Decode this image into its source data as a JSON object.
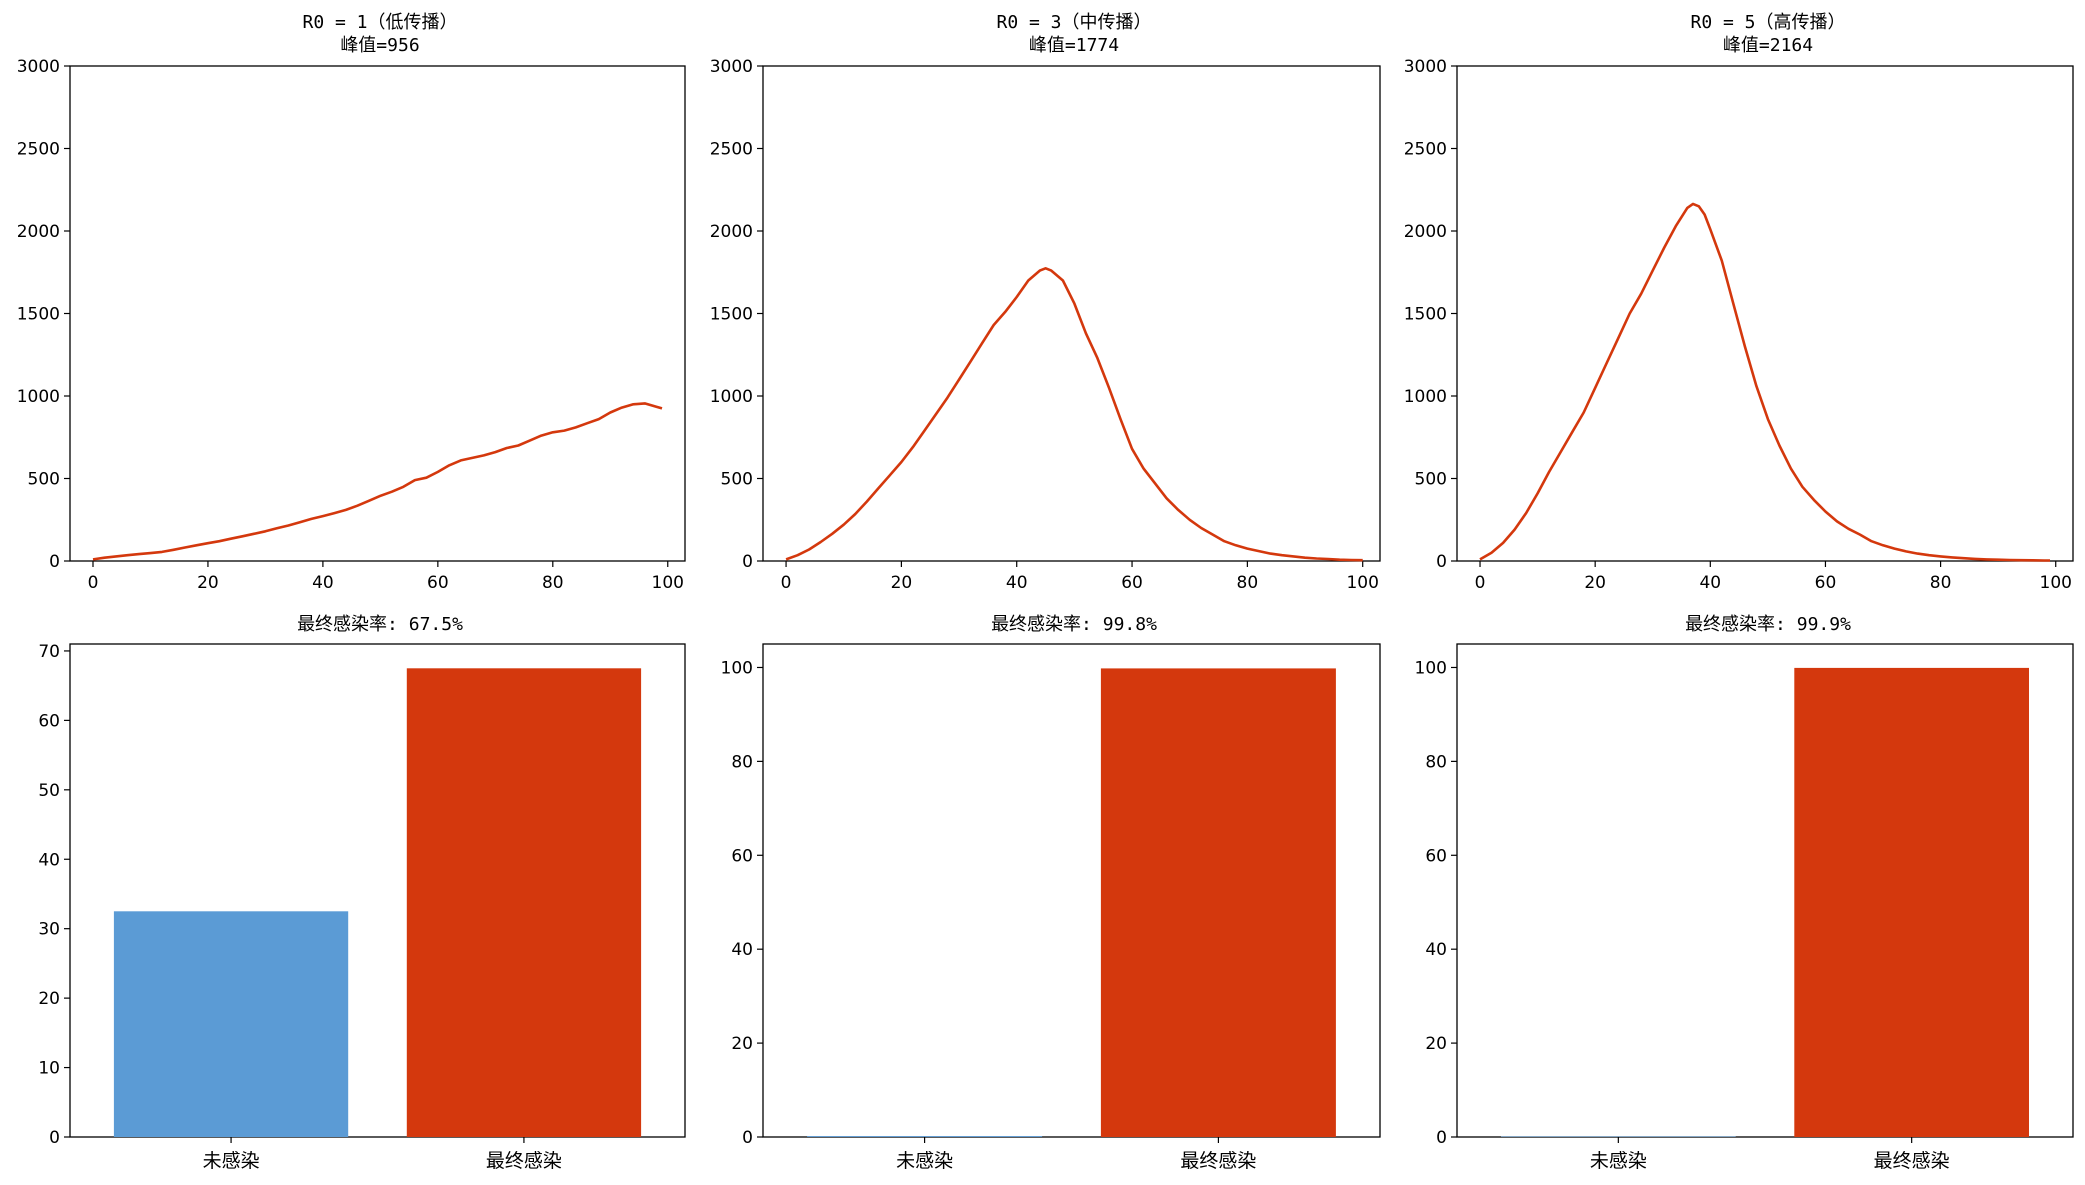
{
  "chart_data": [
    {
      "type": "line",
      "title": "R0 = 1（低传播）",
      "subtitle": "峰值=956",
      "xlim": [
        -4,
        103
      ],
      "ylim": [
        0,
        3000
      ],
      "xticks": [
        0,
        20,
        40,
        60,
        80,
        100
      ],
      "yticks": [
        0,
        500,
        1000,
        1500,
        2000,
        2500,
        3000
      ],
      "color": "#d4380d",
      "series": [
        {
          "x": [
            0,
            2,
            4,
            6,
            8,
            10,
            12,
            14,
            16,
            18,
            20,
            22,
            24,
            26,
            28,
            30,
            32,
            34,
            36,
            38,
            40,
            42,
            44,
            46,
            48,
            50,
            52,
            54,
            56,
            58,
            60,
            62,
            64,
            66,
            68,
            70,
            72,
            74,
            76,
            78,
            80,
            82,
            84,
            86,
            88,
            90,
            92,
            94,
            96,
            98,
            99
          ],
          "values": [
            10,
            20,
            28,
            35,
            42,
            48,
            55,
            68,
            82,
            95,
            108,
            120,
            135,
            150,
            165,
            180,
            198,
            215,
            235,
            255,
            272,
            290,
            310,
            335,
            365,
            395,
            420,
            450,
            490,
            505,
            540,
            580,
            610,
            625,
            640,
            660,
            685,
            700,
            730,
            760,
            780,
            790,
            810,
            835,
            860,
            900,
            930,
            950,
            955,
            935,
            925
          ]
        }
      ]
    },
    {
      "type": "line",
      "title": "R0 = 3（中传播）",
      "subtitle": "峰值=1774",
      "xlim": [
        -4,
        103
      ],
      "ylim": [
        0,
        3000
      ],
      "xticks": [
        0,
        20,
        40,
        60,
        80,
        100
      ],
      "yticks": [
        0,
        500,
        1000,
        1500,
        2000,
        2500,
        3000
      ],
      "color": "#d4380d",
      "series": [
        {
          "x": [
            0,
            2,
            4,
            6,
            8,
            10,
            12,
            14,
            16,
            18,
            20,
            22,
            24,
            26,
            28,
            30,
            32,
            34,
            36,
            38,
            40,
            42,
            44,
            45,
            46,
            48,
            50,
            52,
            54,
            56,
            58,
            60,
            62,
            64,
            66,
            68,
            70,
            72,
            74,
            76,
            78,
            80,
            82,
            84,
            86,
            88,
            90,
            92,
            94,
            96,
            98,
            100
          ],
          "values": [
            10,
            35,
            70,
            115,
            165,
            220,
            285,
            360,
            440,
            520,
            600,
            690,
            790,
            890,
            990,
            1100,
            1210,
            1320,
            1430,
            1510,
            1600,
            1700,
            1760,
            1774,
            1760,
            1700,
            1560,
            1380,
            1230,
            1050,
            860,
            680,
            560,
            470,
            380,
            310,
            250,
            200,
            160,
            120,
            95,
            75,
            60,
            45,
            35,
            28,
            20,
            15,
            12,
            8,
            6,
            5
          ]
        }
      ]
    },
    {
      "type": "line",
      "title": "R0 = 5（高传播）",
      "subtitle": "峰值=2164",
      "xlim": [
        -4,
        103
      ],
      "ylim": [
        0,
        3000
      ],
      "xticks": [
        0,
        20,
        40,
        60,
        80,
        100
      ],
      "yticks": [
        0,
        500,
        1000,
        1500,
        2000,
        2500,
        3000
      ],
      "color": "#d4380d",
      "series": [
        {
          "x": [
            0,
            2,
            4,
            6,
            8,
            10,
            12,
            14,
            16,
            18,
            20,
            22,
            24,
            26,
            28,
            30,
            32,
            34,
            36,
            37,
            38,
            39,
            40,
            42,
            44,
            46,
            48,
            50,
            52,
            54,
            56,
            58,
            60,
            62,
            64,
            66,
            68,
            70,
            72,
            74,
            76,
            78,
            80,
            82,
            84,
            86,
            88,
            90,
            92,
            94,
            96,
            98,
            99
          ],
          "values": [
            10,
            50,
            110,
            190,
            290,
            410,
            540,
            660,
            780,
            900,
            1050,
            1200,
            1350,
            1500,
            1620,
            1760,
            1900,
            2030,
            2140,
            2164,
            2150,
            2100,
            2010,
            1820,
            1560,
            1300,
            1060,
            860,
            700,
            560,
            450,
            370,
            300,
            240,
            195,
            160,
            120,
            95,
            75,
            58,
            45,
            35,
            28,
            22,
            17,
            13,
            10,
            8,
            6,
            5,
            4,
            3,
            3
          ]
        }
      ]
    },
    {
      "type": "bar",
      "title": "最终感染率: 67.5%",
      "categories": [
        "未感染",
        "最终感染"
      ],
      "values": [
        32.5,
        67.5
      ],
      "colors": [
        "#5b9bd5",
        "#d4380d"
      ],
      "ylim": [
        0,
        71
      ],
      "yticks": [
        0,
        10,
        20,
        30,
        40,
        50,
        60,
        70
      ]
    },
    {
      "type": "bar",
      "title": "最终感染率: 99.8%",
      "categories": [
        "未感染",
        "最终感染"
      ],
      "values": [
        0.2,
        99.8
      ],
      "colors": [
        "#5b9bd5",
        "#d4380d"
      ],
      "ylim": [
        0,
        105
      ],
      "yticks": [
        0,
        20,
        40,
        60,
        80,
        100
      ]
    },
    {
      "type": "bar",
      "title": "最终感染率: 99.9%",
      "categories": [
        "未感染",
        "最终感染"
      ],
      "values": [
        0.1,
        99.9
      ],
      "colors": [
        "#5b9bd5",
        "#d4380d"
      ],
      "ylim": [
        0,
        105
      ],
      "yticks": [
        0,
        20,
        40,
        60,
        80,
        100
      ]
    }
  ]
}
